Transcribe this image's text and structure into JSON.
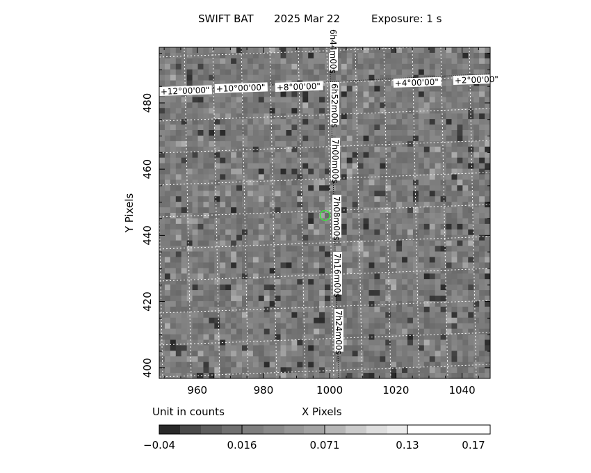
{
  "header": {
    "instrument": "SWIFT BAT",
    "date": "2025 Mar 22",
    "exposure": "Exposure: 1 s"
  },
  "chart_data": {
    "type": "heatmap",
    "title": "SWIFT BAT   2025 Mar 22    Exposure: 1 s",
    "xlabel": "X Pixels",
    "ylabel": "Y Pixels",
    "xlim": [
      948.5,
      1048.5
    ],
    "ylim": [
      396.8,
      496.8
    ],
    "x_ticks": [
      960,
      980,
      1000,
      1020,
      1040
    ],
    "y_ticks": [
      400,
      420,
      440,
      460,
      480
    ],
    "grid": true,
    "ra_labels": [
      "6h44m00s",
      "6h52m00s",
      "7h00m00s",
      "7h08m00s",
      "7h16m00s",
      "7h24m00s"
    ],
    "dec_labels": [
      "+12°00'00\"",
      "+10°00'00\"",
      "+8°00'00\"",
      "+4°00'00\"",
      "+2°00'00\""
    ],
    "source_marker": {
      "x": 998.6,
      "y": 446,
      "color": "#3ce63c"
    },
    "colorbar": {
      "unit_label": "Unit in counts",
      "tick_labels": [
        "-0.04",
        "0.016",
        "0.071",
        "0.13",
        "0.17"
      ],
      "tick_values": [
        -0.04,
        0.016,
        0.071,
        0.13,
        0.17
      ],
      "range": [
        -0.04,
        0.17
      ],
      "colors": [
        "#292929",
        "#4a4a4a",
        "#5e5e5e",
        "#707070",
        "#7e7e7e",
        "#8a8a8a",
        "#979797",
        "#a3a3a3",
        "#b6b6b6",
        "#cbcbcb",
        "#dedede",
        "#ebebeb",
        "#ffffff"
      ]
    }
  }
}
